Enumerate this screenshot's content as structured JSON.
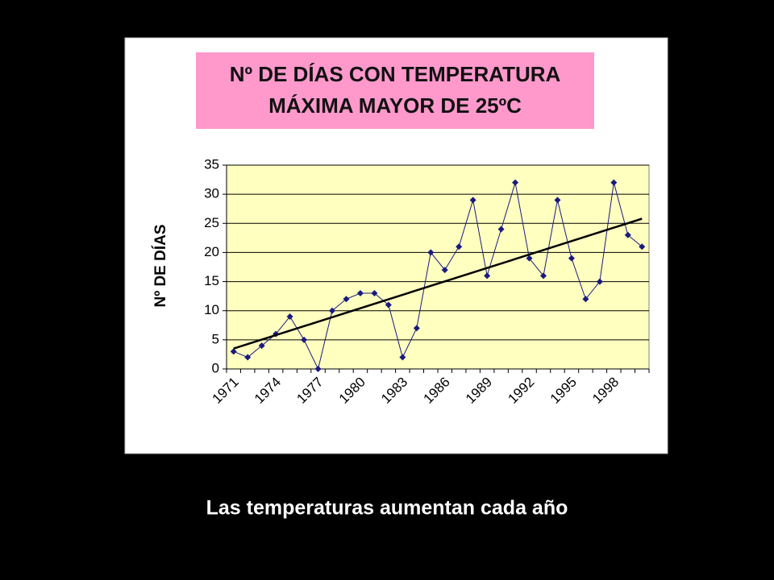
{
  "chart_data": {
    "type": "line",
    "title_lines": [
      "Nº DE DÍAS CON TEMPERATURA",
      "MÁXIMA MAYOR DE 25ºC"
    ],
    "y_label": "Nº DE DÍAS",
    "categories": [
      "1971",
      null,
      null,
      "1974",
      null,
      null,
      "1977",
      null,
      null,
      "1980",
      null,
      null,
      "1983",
      null,
      null,
      "1986",
      null,
      null,
      "1989",
      null,
      null,
      "1992",
      null,
      null,
      "1995",
      null,
      null,
      "1998",
      null,
      null
    ],
    "series": [
      {
        "color": "#1a1a80",
        "values": [
          3,
          2,
          4,
          6,
          9,
          5,
          0,
          10,
          12,
          13,
          13,
          11,
          2,
          7,
          20,
          17,
          21,
          29,
          16,
          24,
          32,
          19,
          16,
          29,
          19,
          12,
          15,
          32,
          23,
          21
        ]
      }
    ],
    "trendline": {
      "color": "#000000",
      "values": [
        3.5,
        25.8
      ]
    },
    "ylim": [
      0,
      35
    ],
    "yticks": [
      0,
      5,
      10,
      15,
      20,
      25,
      30,
      35
    ],
    "grid": true,
    "plot_background": "#ffffc0",
    "title_background": "#ff99cc"
  },
  "caption": "Las temperaturas aumentan cada año"
}
